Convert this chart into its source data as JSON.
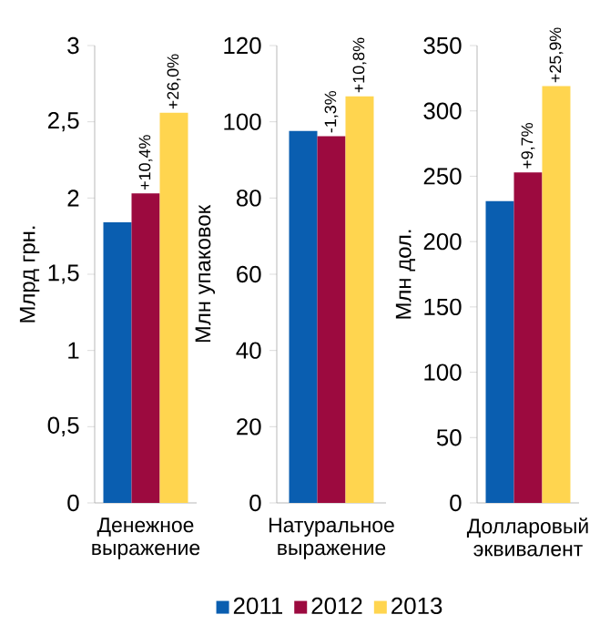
{
  "chart_data": [
    {
      "type": "bar",
      "ylabel": "Млрд грн.",
      "categories": [
        "Денежное выражение"
      ],
      "ylim": [
        0,
        3
      ],
      "yticks": [
        0,
        {
          "value": 0.5,
          "label": "0,5"
        },
        1,
        {
          "value": 1.5,
          "label": "1,5"
        },
        2,
        {
          "value": 2.5,
          "label": "2,5"
        },
        3
      ],
      "series": [
        {
          "color": "#0a5eb0",
          "values": [
            1.84
          ]
        },
        {
          "color": "#9c0a3f",
          "values": [
            2.03
          ]
        },
        {
          "color": "#ffd54f",
          "values": [
            2.56
          ]
        }
      ],
      "annotations": [
        "+10,4%",
        "+26,0%"
      ]
    },
    {
      "type": "bar",
      "ylabel": "Млн упаковок",
      "categories": [
        "Натуральное выражение"
      ],
      "ylim": [
        0,
        120
      ],
      "yticks": [
        0,
        20,
        40,
        60,
        80,
        100,
        120
      ],
      "legend": "bottom",
      "series": [
        {
          "name": "2011",
          "color": "#0a5eb0",
          "values": [
            97.6
          ]
        },
        {
          "name": "2012",
          "color": "#9c0a3f",
          "values": [
            96.2
          ]
        },
        {
          "name": "2013",
          "color": "#ffd54f",
          "values": [
            106.7
          ]
        }
      ],
      "annotations": [
        "-1,3%",
        "+10,8%"
      ]
    },
    {
      "type": "bar",
      "ylabel": "Млн дол.",
      "categories": [
        "Долларовый эквивалент"
      ],
      "ylim": [
        0,
        350
      ],
      "yticks": [
        0,
        50,
        100,
        150,
        200,
        250,
        300,
        350
      ],
      "series": [
        {
          "color": "#0a5eb0",
          "values": [
            231
          ]
        },
        {
          "color": "#9c0a3f",
          "values": [
            253
          ]
        },
        {
          "color": "#ffd54f",
          "values": [
            319
          ]
        }
      ],
      "annotations": [
        "+9,7%",
        "+25,9%"
      ]
    }
  ]
}
